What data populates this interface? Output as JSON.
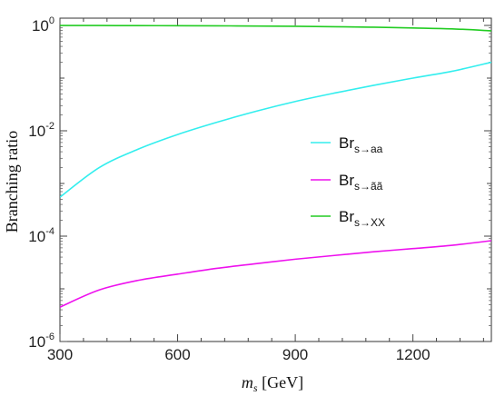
{
  "chart_data": {
    "type": "line",
    "title": "",
    "xlabel": "m_s [GeV]",
    "xlabel_parts": {
      "var": "m",
      "sub": "s",
      "unit": " [GeV]"
    },
    "ylabel": "Branching ratio",
    "yscale": "log",
    "xlim": [
      300,
      1400
    ],
    "ylim": [
      1e-06,
      1.3
    ],
    "x_ticks": [
      300,
      600,
      900,
      1200
    ],
    "x_tick_labels": [
      "300",
      "600",
      "900",
      "1200"
    ],
    "y_ticks": [
      {
        "value": 1,
        "base": "10",
        "exp": "0"
      },
      {
        "value": 0.01,
        "base": "10",
        "exp": "-2"
      },
      {
        "value": 0.0001,
        "base": "10",
        "exp": "-4"
      },
      {
        "value": 1e-06,
        "base": "10",
        "exp": "-6"
      }
    ],
    "grid": false,
    "legend_position": "center-right",
    "x": [
      300,
      400,
      500,
      600,
      700,
      800,
      900,
      1000,
      1100,
      1200,
      1300,
      1400
    ],
    "series": [
      {
        "name": "Br_s→aa",
        "label_main": "Br",
        "label_sub": "s→aa",
        "color": "#33eeee",
        "values": [
          0.00055,
          0.002,
          0.0045,
          0.0085,
          0.0145,
          0.0235,
          0.036,
          0.052,
          0.073,
          0.1,
          0.135,
          0.2
        ]
      },
      {
        "name": "Br_s→ãã",
        "label_main": "Br",
        "label_sub": "s→ãã",
        "color": "#ee11ee",
        "values": [
          4.5e-06,
          9.5e-06,
          1.45e-05,
          1.9e-05,
          2.45e-05,
          3e-05,
          3.65e-05,
          4.3e-05,
          5.05e-05,
          5.8e-05,
          6.7e-05,
          8.2e-05
        ]
      },
      {
        "name": "Br_s→XX",
        "label_main": "Br",
        "label_sub": "s→XX",
        "color": "#22cc22",
        "values": [
          0.998,
          0.996,
          0.992,
          0.988,
          0.983,
          0.975,
          0.962,
          0.946,
          0.925,
          0.895,
          0.86,
          0.79
        ]
      }
    ]
  }
}
